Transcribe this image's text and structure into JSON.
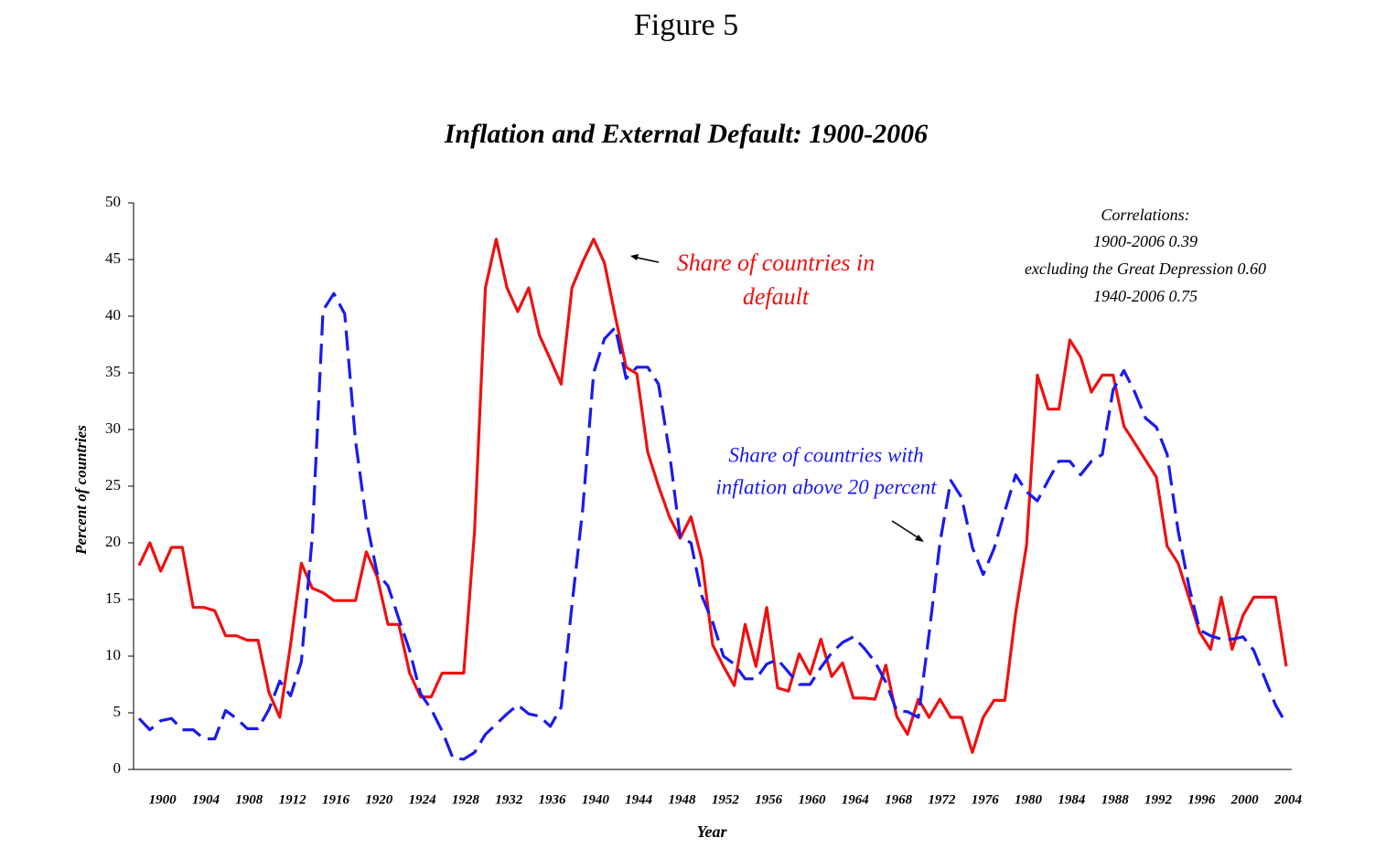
{
  "chart_data": {
    "type": "line",
    "figure_label": "Figure 5",
    "title": "Inflation and External Default: 1900-2006",
    "ylabel": "Percent of countries",
    "xlabel": "Year",
    "categories": [
      null,
      null,
      "1900",
      null,
      null,
      null,
      "1904",
      null,
      null,
      null,
      "1908",
      null,
      null,
      null,
      "1912",
      null,
      null,
      null,
      "1916",
      null,
      null,
      null,
      "1920",
      null,
      null,
      null,
      "1924",
      null,
      null,
      null,
      "1928",
      null,
      null,
      null,
      "1932",
      null,
      null,
      null,
      "1936",
      null,
      null,
      null,
      "1940",
      null,
      null,
      null,
      "1944",
      null,
      null,
      null,
      "1948",
      null,
      null,
      null,
      "1952",
      null,
      null,
      null,
      "1956",
      null,
      null,
      null,
      "1960",
      null,
      null,
      null,
      "1964",
      null,
      null,
      null,
      "1968",
      null,
      null,
      null,
      "1972",
      null,
      null,
      null,
      "1976",
      null,
      null,
      null,
      "1980",
      null,
      null,
      null,
      "1984",
      null,
      null,
      null,
      "1988",
      null,
      null,
      null,
      "1992",
      null,
      null,
      null,
      "1996",
      null,
      null,
      null,
      "2000",
      null,
      null,
      null,
      "2004"
    ],
    "series": [
      {
        "name": "Share of countries in default",
        "color": "#ee1111",
        "dashed": false,
        "values": [
          18,
          20,
          17.5,
          19.6,
          19.6,
          14.3,
          14.3,
          14,
          11.8,
          11.8,
          11.4,
          11.4,
          6.8,
          4.6,
          11,
          18.2,
          16,
          15.6,
          14.9,
          14.9,
          14.9,
          19.2,
          17,
          12.8,
          12.8,
          8.5,
          6.4,
          6.4,
          8.5,
          8.5,
          8.5,
          21,
          42.5,
          46.8,
          42.5,
          40.4,
          42.5,
          38.3,
          36.2,
          34,
          42.5,
          44.8,
          46.8,
          44.7,
          40,
          35.5,
          34.9,
          28,
          25,
          22.3,
          20.4,
          22.3,
          18.5,
          11,
          9.1,
          7.4,
          12.8,
          9.1,
          14.3,
          7.2,
          6.9,
          10.2,
          8.4,
          11.5,
          8.2,
          9.4,
          6.3,
          6.3,
          6.2,
          9.2,
          4.7,
          3.1,
          6.2,
          4.6,
          6.2,
          4.6,
          4.6,
          1.5,
          4.6,
          6.1,
          6.1,
          13.8,
          19.8,
          34.8,
          31.8,
          31.8,
          37.9,
          36.4,
          33.3,
          34.8,
          34.8,
          30.3,
          28.8,
          27.3,
          25.8,
          19.7,
          18.2,
          15.2,
          12.1,
          10.6,
          15.2,
          10.6,
          13.6,
          15.2,
          15.2,
          15.2,
          9.1
        ]
      },
      {
        "name": "Share of countries with inflation above 20 percent",
        "color": "#1a1aee",
        "dashed": true,
        "values": [
          4.5,
          3.5,
          4.3,
          4.5,
          3.5,
          3.5,
          2.7,
          2.7,
          5.2,
          4.5,
          3.6,
          3.6,
          5.3,
          7.8,
          6.5,
          9.5,
          20.5,
          40.5,
          42,
          40.2,
          29,
          22,
          17.3,
          16.2,
          13.3,
          10.5,
          6.7,
          5.3,
          3.4,
          1,
          0.9,
          1.5,
          3.1,
          4,
          4.9,
          5.7,
          4.9,
          4.7,
          3.8,
          5.5,
          14.5,
          23,
          35,
          38,
          39,
          34.5,
          35.5,
          35.5,
          34,
          28,
          20.5,
          20,
          15.3,
          13,
          10,
          9.3,
          8,
          8,
          9.3,
          9.7,
          8.6,
          7.5,
          7.5,
          9,
          10.3,
          11.2,
          11.7,
          10.7,
          9.5,
          7.7,
          5.2,
          5.1,
          4.6,
          12,
          20,
          25.5,
          24,
          19.6,
          17.2,
          19.5,
          22.8,
          26,
          24.5,
          23.7,
          25.5,
          27.2,
          27.2,
          26,
          27.2,
          27.8,
          33.5,
          35.2,
          33.3,
          31,
          30.2,
          27.8,
          21.1,
          16.2,
          12.3,
          11.8,
          11.5,
          11.5,
          11.7,
          10.5,
          8.1,
          5.7,
          4
        ]
      }
    ],
    "annotations": {
      "default": [
        "Share of countries in",
        "default"
      ],
      "inflation": [
        "Share of countries with",
        "inflation above 20 percent"
      ],
      "correlations": [
        "Correlations:",
        "1900-2006 0.39",
        "excluding the Great Depression 0.60",
        "1940-2006  0.75"
      ]
    },
    "ylim": [
      0,
      50
    ],
    "yticks": [
      0,
      5,
      10,
      15,
      20,
      25,
      30,
      35,
      40,
      45,
      50
    ]
  }
}
